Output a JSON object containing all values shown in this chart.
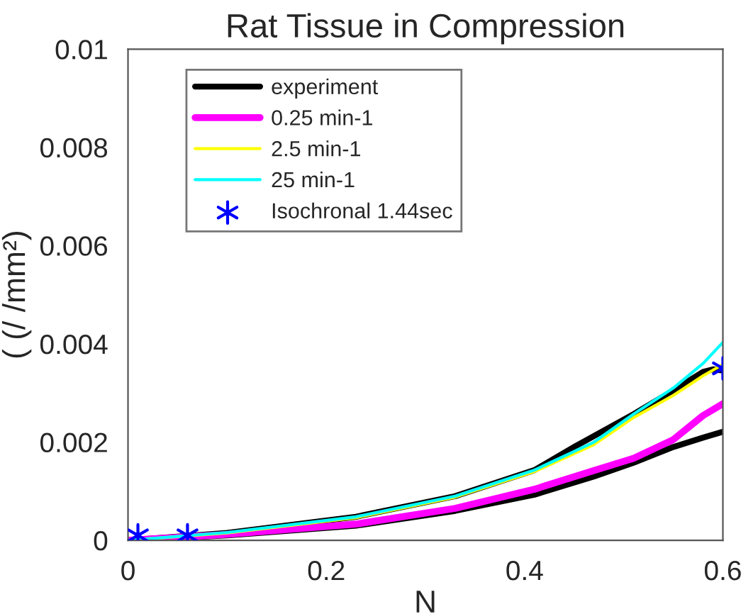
{
  "chart_data": {
    "type": "line",
    "title": "Rat Tissue in Compression",
    "xlabel": "N",
    "ylabel": "( (/ /mm²)",
    "xlim": [
      0,
      0.6
    ],
    "xticks": [
      0,
      0.2,
      0.4,
      0.6
    ],
    "ylim": [
      0,
      0.01
    ],
    "yticks": [
      0,
      0.002,
      0.004,
      0.006,
      0.008,
      0.01
    ],
    "grid": false,
    "legend": "top left",
    "series": [
      {
        "name": "experiment",
        "color": "#000000",
        "x": [
          0,
          0.1,
          0.23,
          0.33,
          0.41,
          0.45,
          0.51,
          0.55,
          0.58,
          0.59,
          0.6
        ],
        "values": [
          0,
          0.00015,
          0.00048,
          0.0009,
          0.00143,
          0.0019,
          0.00257,
          0.00305,
          0.00343,
          0.00348,
          0.00346
        ]
      },
      {
        "color": "#000000",
        "x": [
          0,
          0.1,
          0.23,
          0.33,
          0.41,
          0.47,
          0.51,
          0.55,
          0.58,
          0.6
        ],
        "values": [
          0,
          0.0001,
          0.0003,
          0.0006,
          0.00093,
          0.0013,
          0.00158,
          0.0019,
          0.00209,
          0.00221
        ]
      },
      {
        "name": "0.25 min-1",
        "color": "#ff00ff",
        "x": [
          0,
          0.1,
          0.23,
          0.33,
          0.41,
          0.47,
          0.51,
          0.55,
          0.58,
          0.6
        ],
        "values": [
          0,
          0.00012,
          0.00033,
          0.00065,
          0.00104,
          0.00142,
          0.00167,
          0.00205,
          0.00254,
          0.00278
        ]
      },
      {
        "name": "2.5 min-1",
        "color": "#ffff00",
        "x": [
          0,
          0.1,
          0.23,
          0.33,
          0.41,
          0.47,
          0.51,
          0.55,
          0.58,
          0.6
        ],
        "values": [
          0,
          0.00015,
          0.00046,
          0.00088,
          0.0014,
          0.00195,
          0.0025,
          0.00295,
          0.00335,
          0.00358
        ]
      },
      {
        "name": "25 min-1",
        "color": "#00ffff",
        "x": [
          0,
          0.1,
          0.23,
          0.33,
          0.41,
          0.47,
          0.51,
          0.55,
          0.58,
          0.6
        ],
        "values": [
          0,
          0.00016,
          0.00048,
          0.0009,
          0.00143,
          0.002,
          0.00257,
          0.0031,
          0.0036,
          0.00403
        ]
      },
      {
        "name": "Isochronal 1.44sec",
        "type": "scatter",
        "marker": "cross",
        "color": "#0000ff",
        "x": [
          0.01,
          0.06,
          0.6
        ],
        "values": [
          0.0001,
          0.0001,
          0.0035
        ]
      }
    ]
  }
}
